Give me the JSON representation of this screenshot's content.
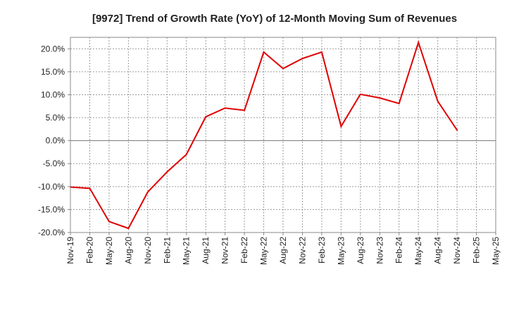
{
  "chart_data": {
    "type": "line",
    "title": "[9972]  Trend of Growth Rate (YoY) of 12-Month Moving Sum of Revenues",
    "xlabel": "",
    "ylabel": "",
    "ylim": [
      -20,
      22.5
    ],
    "yticks": [
      -20,
      -15,
      -10,
      -5,
      0,
      5,
      10,
      15,
      20
    ],
    "ytick_labels": [
      "-20.0%",
      "-15.0%",
      "-10.0%",
      "-5.0%",
      "0.0%",
      "5.0%",
      "10.0%",
      "15.0%",
      "20.0%"
    ],
    "categories": [
      "Nov-19",
      "Feb-20",
      "May-20",
      "Aug-20",
      "Nov-20",
      "Feb-21",
      "May-21",
      "Aug-21",
      "Nov-21",
      "Feb-22",
      "May-22",
      "Aug-22",
      "Nov-22",
      "Feb-23",
      "May-23",
      "Aug-23",
      "Nov-23",
      "Feb-24",
      "May-24",
      "Aug-24",
      "Nov-24",
      "Feb-25",
      "May-25"
    ],
    "series": [
      {
        "name": "",
        "color": "#e00000",
        "values": [
          -10.1,
          -10.4,
          -17.6,
          -19.1,
          -11.2,
          -6.8,
          -3.0,
          5.2,
          7.1,
          6.6,
          19.3,
          15.7,
          17.9,
          19.3,
          3.1,
          10.1,
          9.3,
          8.1,
          21.4,
          8.6,
          2.3,
          null,
          null
        ]
      }
    ],
    "grid": true,
    "legend": "none"
  }
}
